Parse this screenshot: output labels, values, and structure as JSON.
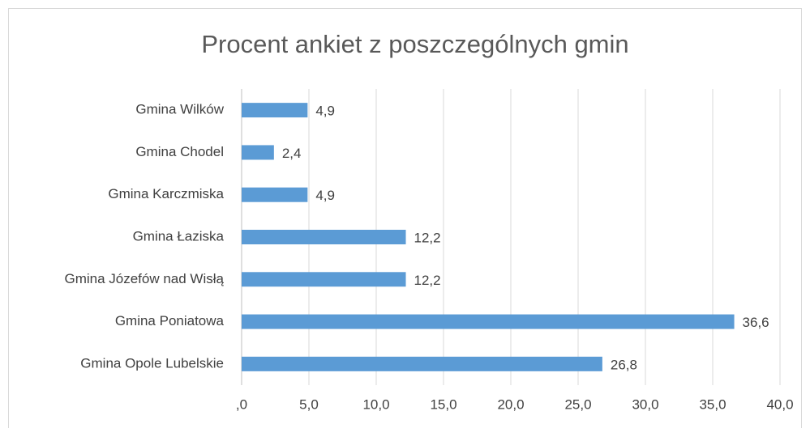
{
  "chart_data": {
    "type": "bar",
    "orientation": "horizontal",
    "title": "Procent ankiet z poszczególnych gmin",
    "categories": [
      "Gmina Wilków",
      "Gmina Chodel",
      "Gmina Karczmiska",
      "Gmina Łaziska",
      "Gmina Józefów nad Wisłą",
      "Gmina Poniatowa",
      "Gmina Opole Lubelskie"
    ],
    "values": [
      4.9,
      2.4,
      4.9,
      12.2,
      12.2,
      36.6,
      26.8
    ],
    "value_labels": [
      "4,9",
      "2,4",
      "4,9",
      "12,2",
      "12,2",
      "36,6",
      "26,8"
    ],
    "color": "#5b9bd5",
    "xlim": [
      0,
      40
    ],
    "xticks": [
      {
        "value": 0,
        "label": ",0"
      },
      {
        "value": 5,
        "label": "5,0"
      },
      {
        "value": 10,
        "label": "10,0"
      },
      {
        "value": 15,
        "label": "15,0"
      },
      {
        "value": 20,
        "label": "20,0"
      },
      {
        "value": 25,
        "label": "25,0"
      },
      {
        "value": 30,
        "label": "30,0"
      },
      {
        "value": 35,
        "label": "35,0"
      },
      {
        "value": 40,
        "label": "40,0"
      }
    ],
    "grid": true
  }
}
